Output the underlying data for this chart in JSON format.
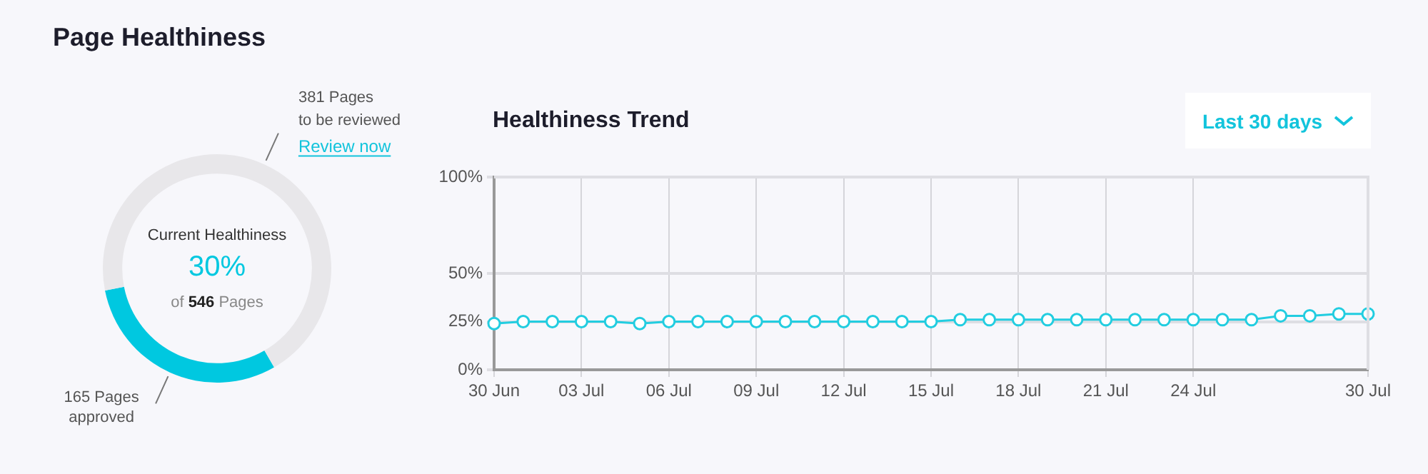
{
  "chart_data": [
    {
      "type": "donut",
      "title": "Page Healthiness",
      "categories": [
        "approved",
        "to be reviewed"
      ],
      "values": [
        165,
        381
      ],
      "colors": [
        "#00c8e0",
        "#e8e7ea"
      ],
      "value_labels": [
        "165 Pages",
        "381 Pages"
      ],
      "annotations": [
        "Current Healthiness",
        "30%",
        "of 546 Pages",
        "Review now"
      ]
    },
    {
      "type": "line",
      "title": "Healthiness Trend",
      "categories": [
        "30 Jun",
        null,
        null,
        "03 Jul",
        null,
        null,
        "06 Jul",
        null,
        null,
        "09 Jul",
        null,
        null,
        "12 Jul",
        null,
        null,
        "15 Jul",
        null,
        null,
        "18 Jul",
        null,
        null,
        "21 Jul",
        null,
        null,
        "24 Jul",
        null,
        null,
        null,
        null,
        null,
        "30 Jul"
      ],
      "series": [
        {
          "color": "#22cde0",
          "values": [
            24,
            25,
            25,
            25,
            25,
            24,
            25,
            25,
            25,
            25,
            25,
            25,
            25,
            25,
            25,
            25,
            26,
            26,
            26,
            26,
            26,
            26,
            26,
            26,
            26,
            26,
            26,
            28,
            28,
            29,
            29
          ]
        }
      ],
      "ylim": [
        0,
        100
      ],
      "yticks": [
        {
          "value": 0,
          "label": "0%"
        },
        {
          "value": 25,
          "label": "25%"
        },
        {
          "value": 50,
          "label": "50%"
        },
        {
          "value": 100,
          "label": "100%"
        }
      ],
      "grid": true,
      "marker": "circle",
      "line_style": "solid",
      "annotations": [
        "Last 30 days"
      ]
    }
  ]
}
